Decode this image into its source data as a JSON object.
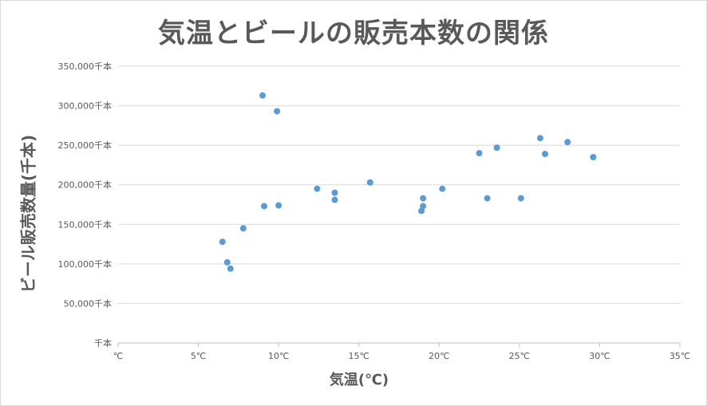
{
  "chart_data": {
    "type": "scatter",
    "title": "気温とビールの販売本数の関係",
    "xlabel": "気温(℃)",
    "ylabel": "ビール販売数量(千本)",
    "xlim": [
      0,
      35
    ],
    "ylim": [
      0,
      350000
    ],
    "x_ticks": [
      0,
      5,
      10,
      15,
      20,
      25,
      30,
      35
    ],
    "x_tick_labels": [
      "℃",
      "5℃",
      "10℃",
      "15℃",
      "20℃",
      "25℃",
      "30℃",
      "35℃"
    ],
    "y_ticks": [
      0,
      50000,
      100000,
      150000,
      200000,
      250000,
      300000,
      350000
    ],
    "y_tick_labels": [
      "千本",
      "50,000千本",
      "100,000千本",
      "150,000千本",
      "200,000千本",
      "250,000千本",
      "300,000千本",
      "350,000千本"
    ],
    "grid": "horizontal",
    "marker_color": "#5b9bd5",
    "points": [
      {
        "x": 6.5,
        "y": 128000
      },
      {
        "x": 6.8,
        "y": 102000
      },
      {
        "x": 7.0,
        "y": 94000
      },
      {
        "x": 7.8,
        "y": 145000
      },
      {
        "x": 9.0,
        "y": 313000
      },
      {
        "x": 9.1,
        "y": 173000
      },
      {
        "x": 9.9,
        "y": 293000
      },
      {
        "x": 10.0,
        "y": 174000
      },
      {
        "x": 12.4,
        "y": 195000
      },
      {
        "x": 13.5,
        "y": 190000
      },
      {
        "x": 13.5,
        "y": 181000
      },
      {
        "x": 15.7,
        "y": 203000
      },
      {
        "x": 18.9,
        "y": 167000
      },
      {
        "x": 19.0,
        "y": 173000
      },
      {
        "x": 19.0,
        "y": 183000
      },
      {
        "x": 20.2,
        "y": 195000
      },
      {
        "x": 22.5,
        "y": 240000
      },
      {
        "x": 23.0,
        "y": 183000
      },
      {
        "x": 23.6,
        "y": 247000
      },
      {
        "x": 25.1,
        "y": 183000
      },
      {
        "x": 26.3,
        "y": 259000
      },
      {
        "x": 26.6,
        "y": 239000
      },
      {
        "x": 28.0,
        "y": 254000
      },
      {
        "x": 29.6,
        "y": 235000
      }
    ]
  }
}
